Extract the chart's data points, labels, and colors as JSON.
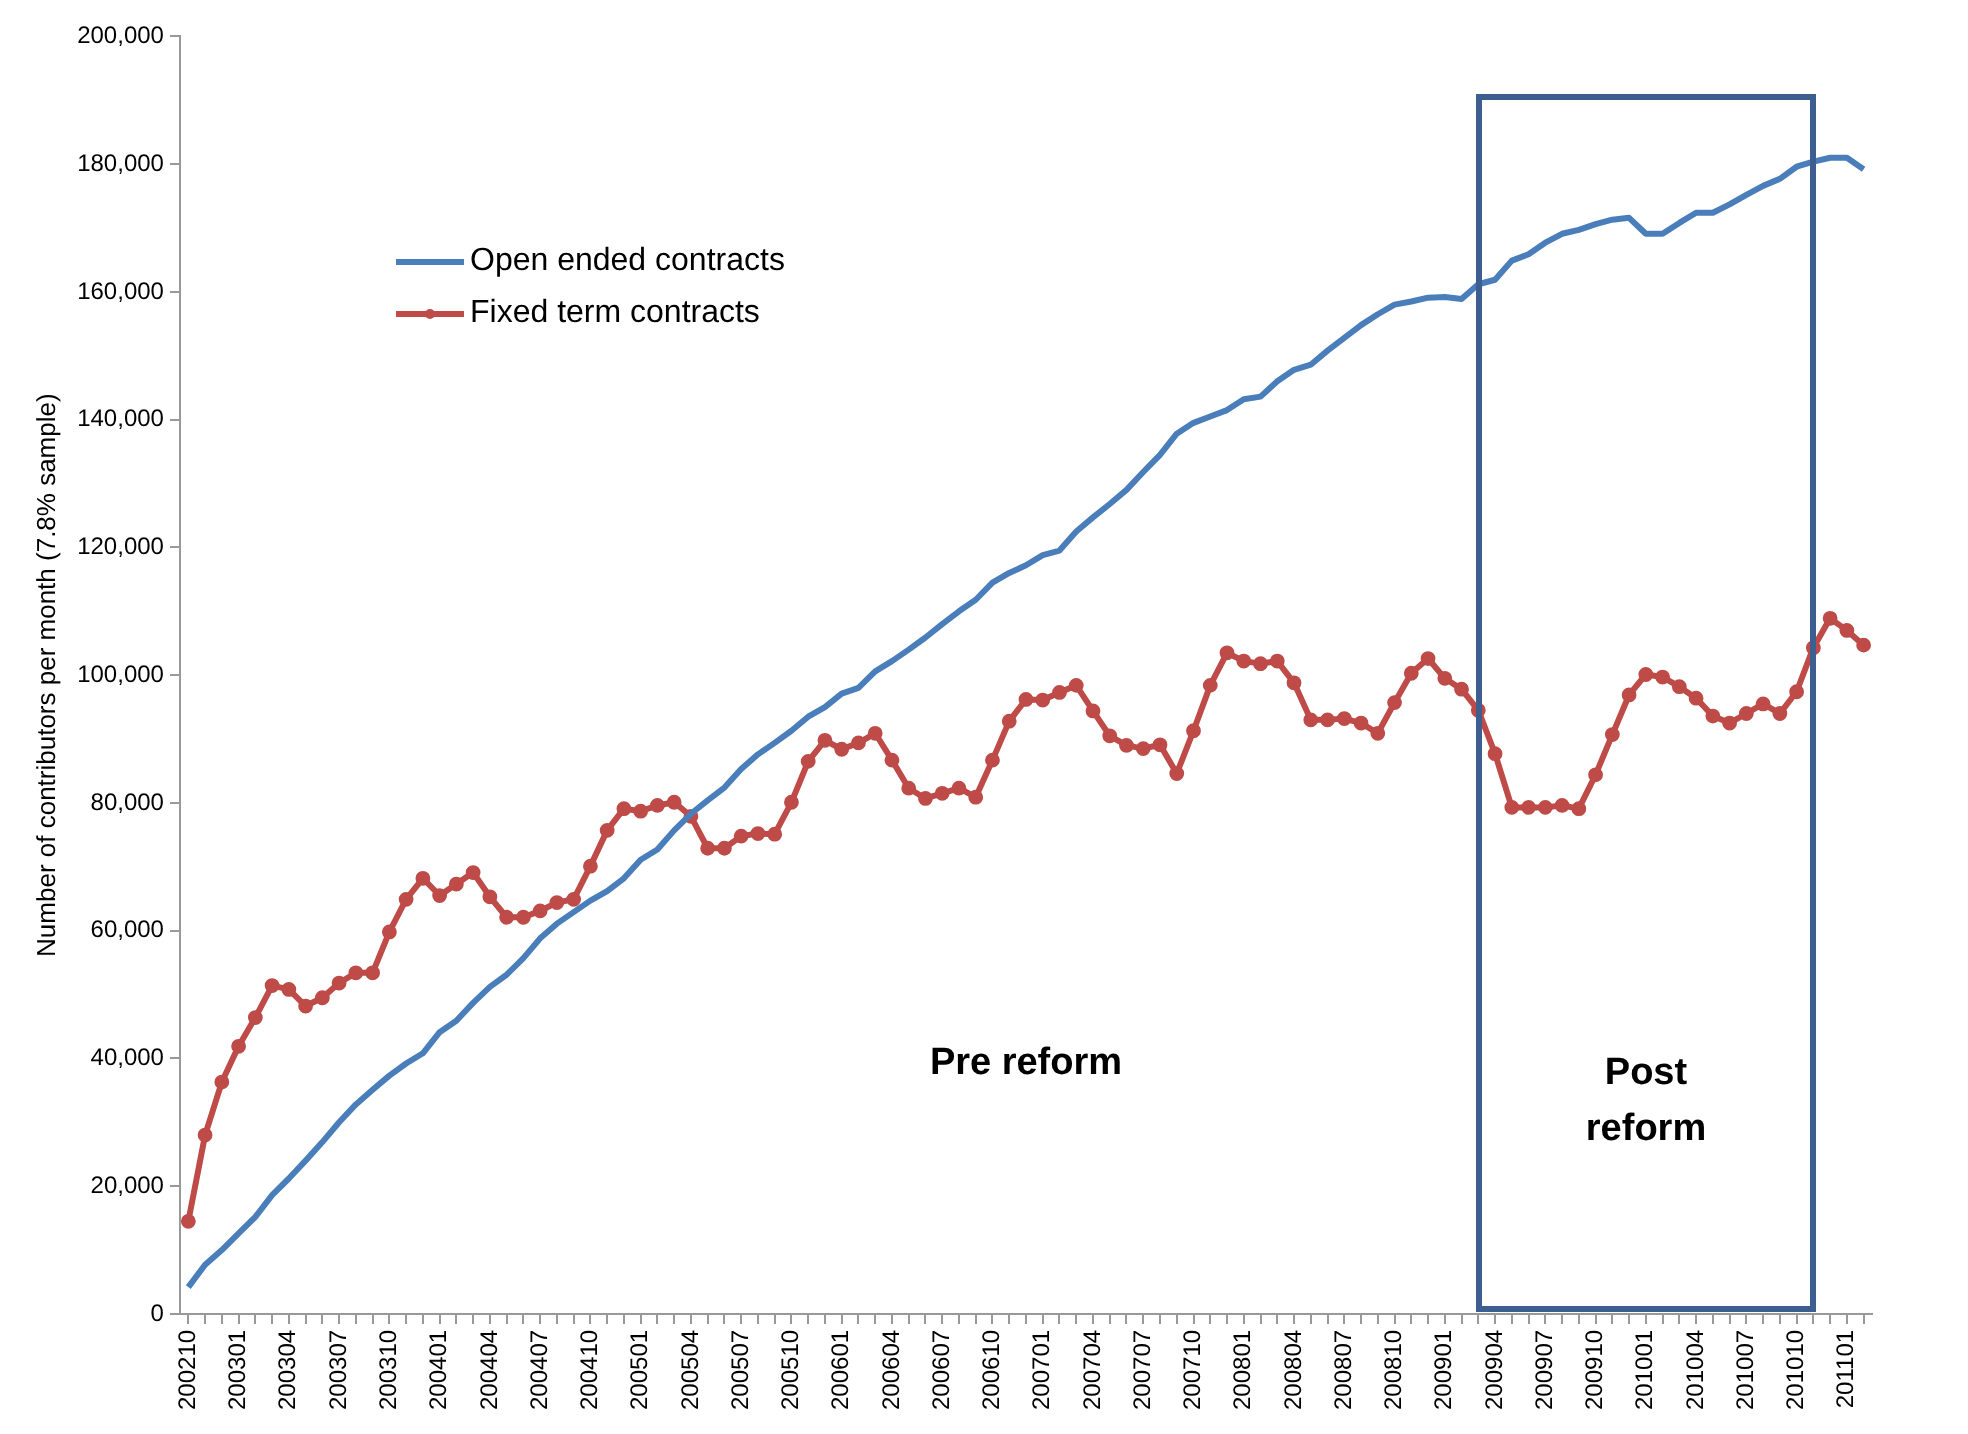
{
  "chart_data": {
    "type": "line",
    "ylabel": "Number of contributors per month (7.8% sample)",
    "categories": [
      "200210",
      null,
      null,
      "200301",
      null,
      null,
      "200304",
      null,
      null,
      "200307",
      null,
      null,
      "200310",
      null,
      null,
      "200401",
      null,
      null,
      "200404",
      null,
      null,
      "200407",
      null,
      null,
      "200410",
      null,
      null,
      "200501",
      null,
      null,
      "200504",
      null,
      null,
      "200507",
      null,
      null,
      "200510",
      null,
      null,
      "200601",
      null,
      null,
      "200604",
      null,
      null,
      "200607",
      null,
      null,
      "200610",
      null,
      null,
      "200701",
      null,
      null,
      "200704",
      null,
      null,
      "200707",
      null,
      null,
      "200710",
      null,
      null,
      "200801",
      null,
      null,
      "200804",
      null,
      null,
      "200807",
      null,
      null,
      "200810",
      null,
      null,
      "200901",
      null,
      null,
      "200904",
      null,
      null,
      "200907",
      null,
      null,
      "200910",
      null,
      null,
      "201001",
      null,
      null,
      "201004",
      null,
      null,
      "201007",
      null,
      null,
      "201010",
      null,
      null,
      "201101",
      null
    ],
    "series": [
      {
        "name": "Open ended contracts",
        "color": "#4a7ebb",
        "marker": "none",
        "values": [
          4200,
          7700,
          10000,
          12600,
          15200,
          18600,
          21200,
          24000,
          26900,
          30000,
          32800,
          35100,
          37300,
          39200,
          40800,
          44100,
          45900,
          48700,
          51200,
          53100,
          55700,
          58800,
          61100,
          62900,
          64700,
          66200,
          68200,
          71100,
          72700,
          75700,
          78300,
          80400,
          82400,
          85300,
          87600,
          89400,
          91300,
          93500,
          95000,
          97100,
          98000,
          100600,
          102200,
          104000,
          105900,
          108000,
          110000,
          111800,
          114500,
          116000,
          117200,
          118800,
          119500,
          122500,
          124700,
          126800,
          129000,
          131800,
          134500,
          137800,
          139500,
          140500,
          141500,
          143200,
          143600,
          146000,
          147800,
          148600,
          150800,
          152800,
          154800,
          156500,
          158000,
          158500,
          159100,
          159200,
          158900,
          161200,
          161900,
          164900,
          165900,
          167700,
          169100,
          169700,
          170600,
          171300,
          171600,
          169100,
          169100,
          170800,
          172400,
          172400,
          173700,
          175200,
          176600,
          177700,
          179600,
          180400,
          181000,
          181000,
          179200
        ]
      },
      {
        "name": "Fixed term contracts",
        "color": "#be4b48",
        "marker": "circle",
        "values": [
          14500,
          28000,
          36300,
          41900,
          46400,
          51400,
          50800,
          48200,
          49500,
          51800,
          53400,
          53400,
          59800,
          64900,
          68200,
          65500,
          67300,
          69100,
          65300,
          62100,
          62100,
          63100,
          64400,
          64900,
          70100,
          75700,
          79100,
          78700,
          79600,
          80100,
          77900,
          72900,
          72900,
          74800,
          75200,
          75100,
          80100,
          86500,
          89800,
          88400,
          89400,
          90900,
          86700,
          82300,
          80700,
          81500,
          82300,
          80900,
          86700,
          92800,
          96200,
          96100,
          97300,
          98400,
          94400,
          90500,
          89000,
          88500,
          89100,
          84600,
          91300,
          98400,
          103500,
          102200,
          101800,
          102200,
          98800,
          93000,
          93000,
          93200,
          92500,
          90900,
          95700,
          100300,
          102600,
          99500,
          97800,
          94500,
          87700,
          79300,
          79300,
          79300,
          79600,
          79100,
          84400,
          90700,
          96900,
          100100,
          99700,
          98200,
          96400,
          93600,
          92500,
          94000,
          95500,
          94000,
          97400,
          104300,
          108900,
          107000,
          104700
        ]
      }
    ],
    "ylim": [
      0,
      200000
    ],
    "yticks": [
      {
        "value": 0,
        "label": "0"
      },
      {
        "value": 20000,
        "label": "20,000"
      },
      {
        "value": 40000,
        "label": "40,000"
      },
      {
        "value": 60000,
        "label": "60,000"
      },
      {
        "value": 80000,
        "label": "80,000"
      },
      {
        "value": 100000,
        "label": "100,000"
      },
      {
        "value": 120000,
        "label": "120,000"
      },
      {
        "value": 140000,
        "label": "140,000"
      },
      {
        "value": 160000,
        "label": "160,000"
      },
      {
        "value": 180000,
        "label": "180,000"
      },
      {
        "value": 200000,
        "label": "200,000"
      }
    ],
    "grid": false,
    "legend": "top left",
    "annotations": [
      "Pre reform",
      "Post reform"
    ]
  }
}
